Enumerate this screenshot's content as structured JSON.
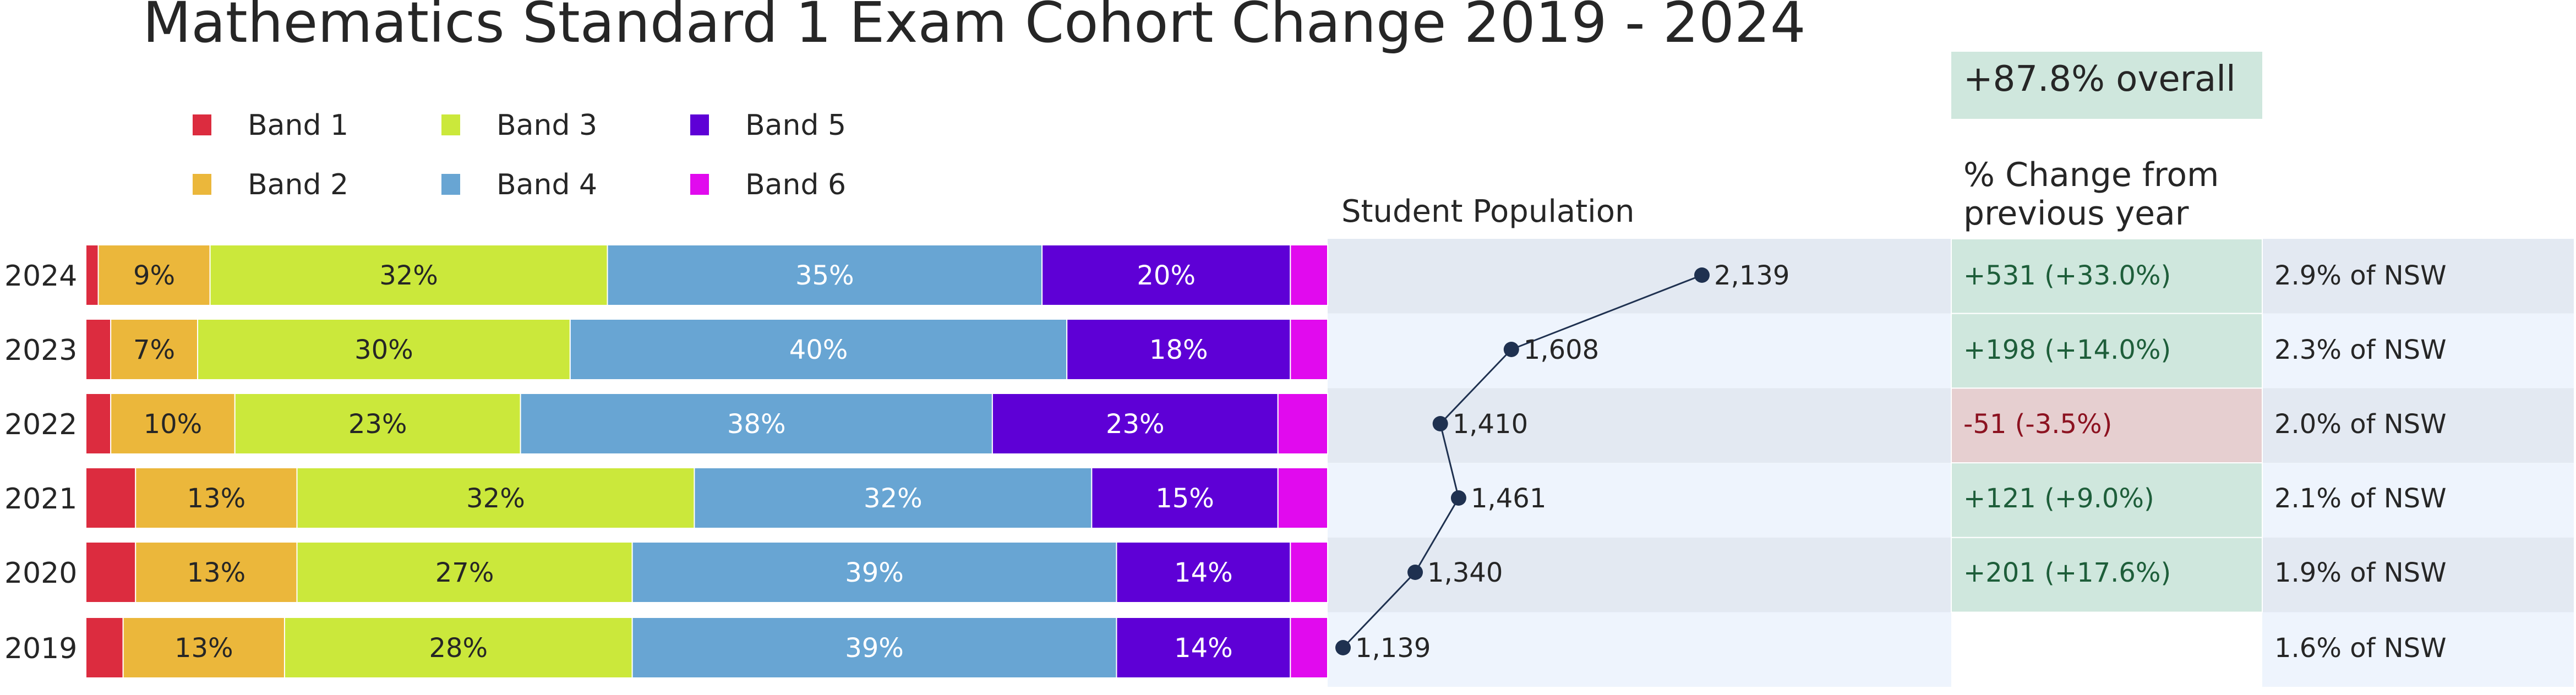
{
  "chart_data": {
    "type": "bar",
    "title": "Mathematics Standard 1 Exam Cohort Change 2019 - 2024",
    "categories": [
      "2024",
      "2023",
      "2022",
      "2021",
      "2020",
      "2019"
    ],
    "stacked": true,
    "orientation": "horizontal",
    "xlim": [
      0,
      100
    ],
    "legend_position": "top-left",
    "series": [
      {
        "name": "Band 1",
        "color": "#dc2c3f",
        "values": [
          1,
          2,
          2,
          4,
          4,
          3
        ],
        "labels": [
          "",
          "",
          "",
          "",
          "",
          ""
        ]
      },
      {
        "name": "Band 2",
        "color": "#ebb73b",
        "values": [
          9,
          7,
          10,
          13,
          13,
          13
        ],
        "labels": [
          "9%",
          "7%",
          "10%",
          "13%",
          "13%",
          "13%"
        ]
      },
      {
        "name": "Band 3",
        "color": "#cbe83b",
        "values": [
          32,
          30,
          23,
          32,
          27,
          28
        ],
        "labels": [
          "32%",
          "30%",
          "23%",
          "32%",
          "27%",
          "28%"
        ]
      },
      {
        "name": "Band 4",
        "color": "#68a5d3",
        "values": [
          35,
          40,
          38,
          32,
          39,
          39
        ],
        "labels": [
          "35%",
          "40%",
          "38%",
          "32%",
          "39%",
          "39%"
        ]
      },
      {
        "name": "Band 5",
        "color": "#5e00d6",
        "values": [
          20,
          18,
          23,
          15,
          14,
          14
        ],
        "labels": [
          "20%",
          "18%",
          "23%",
          "15%",
          "14%",
          "14%"
        ]
      },
      {
        "name": "Band 6",
        "color": "#e10aee",
        "values": [
          3,
          3,
          4,
          4,
          3,
          3
        ],
        "labels": [
          "",
          "",
          "",
          "",
          "",
          ""
        ]
      }
    ],
    "population": {
      "title": "Student Population",
      "values": [
        2139,
        1608,
        1410,
        1461,
        1340,
        1139
      ],
      "labels": [
        "2,139",
        "1,608",
        "1,410",
        "1,461",
        "1,340",
        "1,139"
      ],
      "xlim": [
        1139,
        2139
      ]
    },
    "change": {
      "header": "+87.8% overall",
      "title_line1": "% Change from",
      "title_line2": "previous year",
      "values": [
        "+531  (+33.0%)",
        "+198  (+14.0%)",
        "-51  (-3.5%)",
        "+121  (+9.0%)",
        "+201  (+17.6%)",
        ""
      ],
      "status": [
        "up",
        "up",
        "down",
        "up",
        "up",
        "none"
      ]
    },
    "nsw_share": {
      "values": [
        "2.9% of NSW",
        "2.3% of NSW",
        "2.0% of NSW",
        "2.1% of NSW",
        "1.9% of NSW",
        "1.6% of NSW"
      ]
    },
    "colors": {
      "row_even": "#e3e9f2",
      "row_odd": "#eef4fd",
      "positive_fill": "#cfe7dd",
      "positive_text": "#1e5e3a",
      "negative_fill": "#e6cfd0",
      "negative_text": "#8c1220",
      "marker": "#1f3150"
    }
  }
}
